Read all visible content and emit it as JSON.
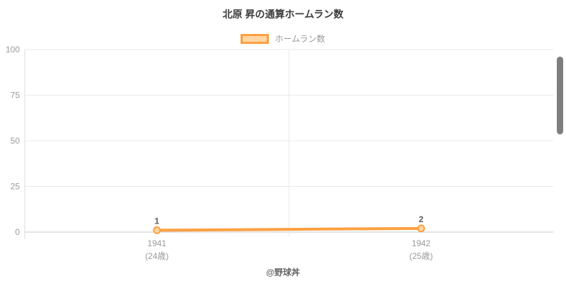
{
  "title": "北原 昇の通算ホームラン数",
  "legend": {
    "label": "ホームラン数",
    "swatch_fill": "#ffd7a5",
    "swatch_border": "#ff9f40"
  },
  "footer": "@野球丼",
  "colors": {
    "line": "#ff9f40",
    "point_fill": "#ffd7a5",
    "grid": "#e9e9e9",
    "zero_line": "#c9c9c9",
    "axis_line": "#dcdcdc",
    "tick_text": "#9a9a9a",
    "title_text": "#3d3d3d",
    "value_label": "#5f5f5f",
    "scrollbar": "#7e7e7e"
  },
  "chart_data": {
    "type": "line",
    "title": "北原 昇の通算ホームラン数",
    "categories": [
      "1941",
      "1942"
    ],
    "categories_sub": [
      "(24歳)",
      "(25歳)"
    ],
    "series": [
      {
        "name": "ホームラン数",
        "values": [
          1,
          2
        ]
      }
    ],
    "ylim": [
      0,
      100
    ],
    "yticks": [
      0,
      25,
      50,
      75,
      100
    ],
    "grid": true,
    "legend_position": "top",
    "point_labels": [
      "1",
      "2"
    ]
  }
}
